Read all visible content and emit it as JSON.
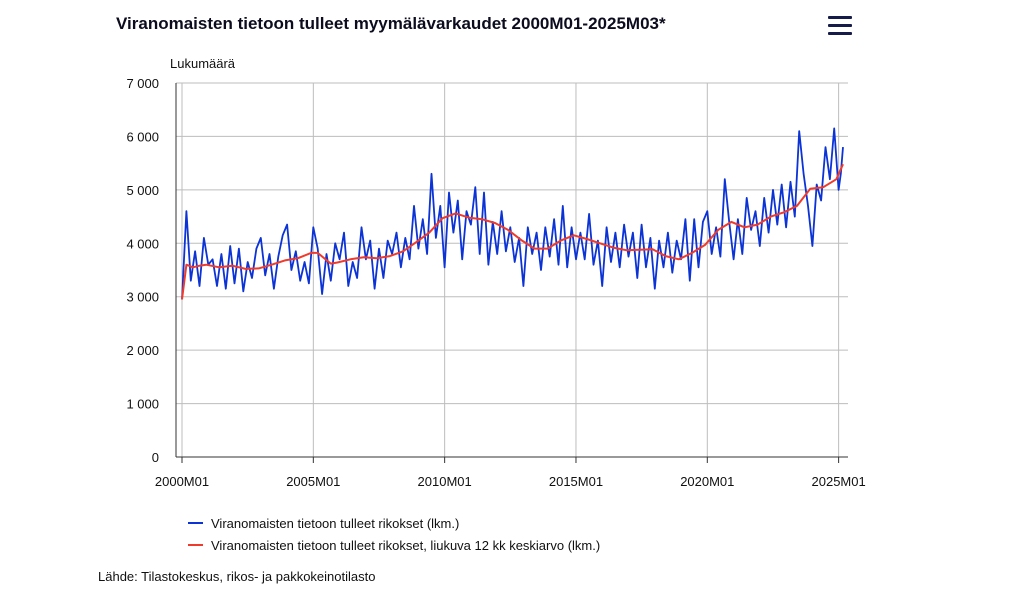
{
  "header": {
    "title": "Viranomaisten tietoon tulleet myymälävarkaudet 2000M01-2025M03*",
    "menu_icon": "hamburger-menu-icon"
  },
  "footer": {
    "source": "Lähde: Tilastokeskus, rikos- ja pakkokeinotilasto"
  },
  "chart_data": {
    "type": "line",
    "title": "Viranomaisten tietoon tulleet myymälävarkaudet 2000M01-2025M03*",
    "ylabel": "Lukumäärä",
    "xlabel": "",
    "ylim": [
      0,
      7000
    ],
    "yticks": [
      {
        "value": 0,
        "label": "0"
      },
      {
        "value": 1000,
        "label": "1 000"
      },
      {
        "value": 2000,
        "label": "2 000"
      },
      {
        "value": 3000,
        "label": "3 000"
      },
      {
        "value": 4000,
        "label": "4 000"
      },
      {
        "value": 5000,
        "label": "5 000"
      },
      {
        "value": 6000,
        "label": "6 000"
      },
      {
        "value": 7000,
        "label": "7 000"
      }
    ],
    "xticks": [
      {
        "value": "2000M01",
        "label": "2000M01"
      },
      {
        "value": "2005M01",
        "label": "2005M01"
      },
      {
        "value": "2010M01",
        "label": "2010M01"
      },
      {
        "value": "2015M01",
        "label": "2015M01"
      },
      {
        "value": "2020M01",
        "label": "2020M01"
      },
      {
        "value": "2025M01",
        "label": "2025M01"
      }
    ],
    "x_start": "2000M01",
    "x_end": "2025M03",
    "grid": true,
    "legend_position": "bottom",
    "series": [
      {
        "name": "Viranomaisten tietoon tulleet rikokset (lkm.)",
        "color": "#0b33d6",
        "points": [
          [
            "2000M01",
            2950
          ],
          [
            "2000M03",
            4600
          ],
          [
            "2000M05",
            3300
          ],
          [
            "2000M07",
            3850
          ],
          [
            "2000M09",
            3200
          ],
          [
            "2000M11",
            4100
          ],
          [
            "2001M01",
            3600
          ],
          [
            "2001M03",
            3700
          ],
          [
            "2001M05",
            3200
          ],
          [
            "2001M07",
            3800
          ],
          [
            "2001M09",
            3150
          ],
          [
            "2001M11",
            3950
          ],
          [
            "2002M01",
            3250
          ],
          [
            "2002M03",
            3900
          ],
          [
            "2002M05",
            3100
          ],
          [
            "2002M07",
            3650
          ],
          [
            "2002M09",
            3350
          ],
          [
            "2002M11",
            3900
          ],
          [
            "2003M01",
            4100
          ],
          [
            "2003M03",
            3400
          ],
          [
            "2003M05",
            3800
          ],
          [
            "2003M07",
            3150
          ],
          [
            "2003M09",
            3750
          ],
          [
            "2003M11",
            4150
          ],
          [
            "2004M01",
            4350
          ],
          [
            "2004M03",
            3500
          ],
          [
            "2004M05",
            3850
          ],
          [
            "2004M07",
            3300
          ],
          [
            "2004M09",
            3650
          ],
          [
            "2004M11",
            3250
          ],
          [
            "2005M01",
            4300
          ],
          [
            "2005M03",
            3900
          ],
          [
            "2005M05",
            3050
          ],
          [
            "2005M07",
            3800
          ],
          [
            "2005M09",
            3300
          ],
          [
            "2005M11",
            4000
          ],
          [
            "2006M01",
            3700
          ],
          [
            "2006M03",
            4200
          ],
          [
            "2006M05",
            3200
          ],
          [
            "2006M07",
            3650
          ],
          [
            "2006M09",
            3350
          ],
          [
            "2006M11",
            4300
          ],
          [
            "2007M01",
            3700
          ],
          [
            "2007M03",
            4050
          ],
          [
            "2007M05",
            3150
          ],
          [
            "2007M07",
            3900
          ],
          [
            "2007M09",
            3350
          ],
          [
            "2007M11",
            4050
          ],
          [
            "2008M01",
            3800
          ],
          [
            "2008M03",
            4200
          ],
          [
            "2008M05",
            3550
          ],
          [
            "2008M07",
            4100
          ],
          [
            "2008M09",
            3700
          ],
          [
            "2008M11",
            4700
          ],
          [
            "2009M01",
            3900
          ],
          [
            "2009M03",
            4450
          ],
          [
            "2009M05",
            3800
          ],
          [
            "2009M07",
            5300
          ],
          [
            "2009M09",
            4100
          ],
          [
            "2009M11",
            4700
          ],
          [
            "2010M01",
            3550
          ],
          [
            "2010M03",
            4950
          ],
          [
            "2010M05",
            4200
          ],
          [
            "2010M07",
            4800
          ],
          [
            "2010M09",
            3700
          ],
          [
            "2010M11",
            4600
          ],
          [
            "2011M01",
            4350
          ],
          [
            "2011M03",
            5050
          ],
          [
            "2011M05",
            3800
          ],
          [
            "2011M07",
            4950
          ],
          [
            "2011M09",
            3600
          ],
          [
            "2011M11",
            4400
          ],
          [
            "2012M01",
            3800
          ],
          [
            "2012M03",
            4600
          ],
          [
            "2012M05",
            3850
          ],
          [
            "2012M07",
            4300
          ],
          [
            "2012M09",
            3650
          ],
          [
            "2012M11",
            4100
          ],
          [
            "2013M01",
            3200
          ],
          [
            "2013M03",
            4300
          ],
          [
            "2013M05",
            3800
          ],
          [
            "2013M07",
            4200
          ],
          [
            "2013M09",
            3500
          ],
          [
            "2013M11",
            4300
          ],
          [
            "2014M01",
            3750
          ],
          [
            "2014M03",
            4450
          ],
          [
            "2014M05",
            3600
          ],
          [
            "2014M07",
            4700
          ],
          [
            "2014M09",
            3550
          ],
          [
            "2014M11",
            4300
          ],
          [
            "2015M01",
            3700
          ],
          [
            "2015M03",
            4200
          ],
          [
            "2015M05",
            3700
          ],
          [
            "2015M07",
            4550
          ],
          [
            "2015M09",
            3600
          ],
          [
            "2015M11",
            4050
          ],
          [
            "2016M01",
            3200
          ],
          [
            "2016M03",
            4300
          ],
          [
            "2016M05",
            3650
          ],
          [
            "2016M07",
            4200
          ],
          [
            "2016M09",
            3550
          ],
          [
            "2016M11",
            4350
          ],
          [
            "2017M01",
            3750
          ],
          [
            "2017M03",
            4200
          ],
          [
            "2017M05",
            3350
          ],
          [
            "2017M07",
            4350
          ],
          [
            "2017M09",
            3550
          ],
          [
            "2017M11",
            4100
          ],
          [
            "2018M01",
            3150
          ],
          [
            "2018M03",
            4050
          ],
          [
            "2018M05",
            3550
          ],
          [
            "2018M07",
            4200
          ],
          [
            "2018M09",
            3450
          ],
          [
            "2018M11",
            4050
          ],
          [
            "2019M01",
            3700
          ],
          [
            "2019M03",
            4450
          ],
          [
            "2019M05",
            3300
          ],
          [
            "2019M07",
            4450
          ],
          [
            "2019M09",
            3550
          ],
          [
            "2019M11",
            4400
          ],
          [
            "2020M01",
            4600
          ],
          [
            "2020M03",
            3800
          ],
          [
            "2020M05",
            4300
          ],
          [
            "2020M07",
            3750
          ],
          [
            "2020M09",
            5200
          ],
          [
            "2020M11",
            4400
          ],
          [
            "2021M01",
            3700
          ],
          [
            "2021M03",
            4450
          ],
          [
            "2021M05",
            3800
          ],
          [
            "2021M07",
            4850
          ],
          [
            "2021M09",
            4250
          ],
          [
            "2021M11",
            4600
          ],
          [
            "2022M01",
            3950
          ],
          [
            "2022M03",
            4850
          ],
          [
            "2022M05",
            4200
          ],
          [
            "2022M07",
            5000
          ],
          [
            "2022M09",
            4350
          ],
          [
            "2022M11",
            5100
          ],
          [
            "2023M01",
            4300
          ],
          [
            "2023M03",
            5150
          ],
          [
            "2023M05",
            4500
          ],
          [
            "2023M07",
            6100
          ],
          [
            "2023M09",
            5300
          ],
          [
            "2023M11",
            4700
          ],
          [
            "2024M01",
            3950
          ],
          [
            "2024M03",
            5100
          ],
          [
            "2024M05",
            4800
          ],
          [
            "2024M07",
            5800
          ],
          [
            "2024M09",
            5200
          ],
          [
            "2024M11",
            6150
          ],
          [
            "2025M01",
            5000
          ],
          [
            "2025M02",
            5300
          ],
          [
            "2025M03",
            5800
          ]
        ]
      },
      {
        "name": "Viranomaisten tietoon tulleet rikokset, liukuva 12 kk keskiarvo (lkm.)",
        "color": "#ef3b2c",
        "points": [
          [
            "2000M01",
            2950
          ],
          [
            "2000M03",
            3600
          ],
          [
            "2000M06",
            3550
          ],
          [
            "2000M09",
            3580
          ],
          [
            "2000M12",
            3600
          ],
          [
            "2001M06",
            3550
          ],
          [
            "2001M12",
            3580
          ],
          [
            "2002M06",
            3520
          ],
          [
            "2002M12",
            3530
          ],
          [
            "2003M06",
            3600
          ],
          [
            "2003M12",
            3680
          ],
          [
            "2004M06",
            3720
          ],
          [
            "2004M12",
            3820
          ],
          [
            "2005M03",
            3820
          ],
          [
            "2005M09",
            3620
          ],
          [
            "2005M12",
            3640
          ],
          [
            "2006M06",
            3700
          ],
          [
            "2006M12",
            3740
          ],
          [
            "2007M06",
            3720
          ],
          [
            "2007M12",
            3760
          ],
          [
            "2008M06",
            3850
          ],
          [
            "2008M12",
            4020
          ],
          [
            "2009M06",
            4200
          ],
          [
            "2009M12",
            4470
          ],
          [
            "2010M06",
            4560
          ],
          [
            "2010M12",
            4480
          ],
          [
            "2011M06",
            4450
          ],
          [
            "2011M12",
            4380
          ],
          [
            "2012M06",
            4250
          ],
          [
            "2012M12",
            4060
          ],
          [
            "2013M06",
            3900
          ],
          [
            "2013M12",
            3900
          ],
          [
            "2014M06",
            4050
          ],
          [
            "2014M12",
            4150
          ],
          [
            "2015M06",
            4080
          ],
          [
            "2015M12",
            4000
          ],
          [
            "2016M06",
            3920
          ],
          [
            "2016M12",
            3870
          ],
          [
            "2017M06",
            3880
          ],
          [
            "2017M12",
            3890
          ],
          [
            "2018M06",
            3760
          ],
          [
            "2018M12",
            3700
          ],
          [
            "2019M06",
            3820
          ],
          [
            "2019M12",
            3970
          ],
          [
            "2020M06",
            4250
          ],
          [
            "2020M12",
            4400
          ],
          [
            "2021M06",
            4300
          ],
          [
            "2021M12",
            4350
          ],
          [
            "2022M06",
            4500
          ],
          [
            "2022M12",
            4580
          ],
          [
            "2023M06",
            4700
          ],
          [
            "2023M12",
            5020
          ],
          [
            "2024M06",
            5050
          ],
          [
            "2024M12",
            5200
          ],
          [
            "2025M03",
            5480
          ]
        ]
      }
    ]
  }
}
